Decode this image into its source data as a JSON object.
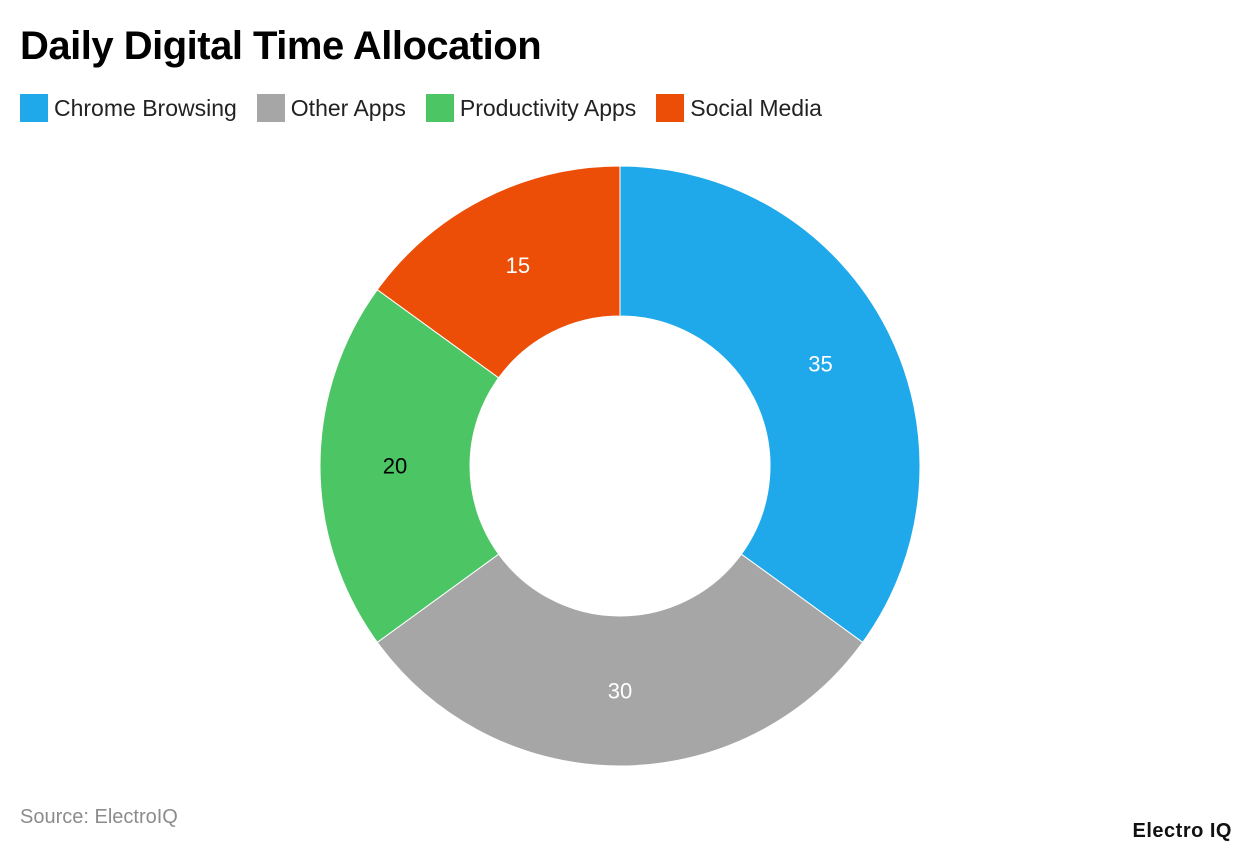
{
  "chart_data": {
    "type": "pie",
    "title": "Daily Digital Time Allocation",
    "categories": [
      "Chrome Browsing",
      "Other Apps",
      "Productivity Apps",
      "Social Media"
    ],
    "values": [
      35,
      30,
      20,
      15
    ],
    "colors": [
      "#20a9ea",
      "#a6a6a6",
      "#4cc564",
      "#ec4e07"
    ],
    "label_colors": [
      "#ffffff",
      "#ffffff",
      "#000000",
      "#ffffff"
    ],
    "donut": true,
    "legend_position": "top-left",
    "start_angle": "12 o'clock",
    "direction": "clockwise"
  },
  "footer": {
    "source": "Source: ElectroIQ",
    "brand": "Electro IQ"
  }
}
